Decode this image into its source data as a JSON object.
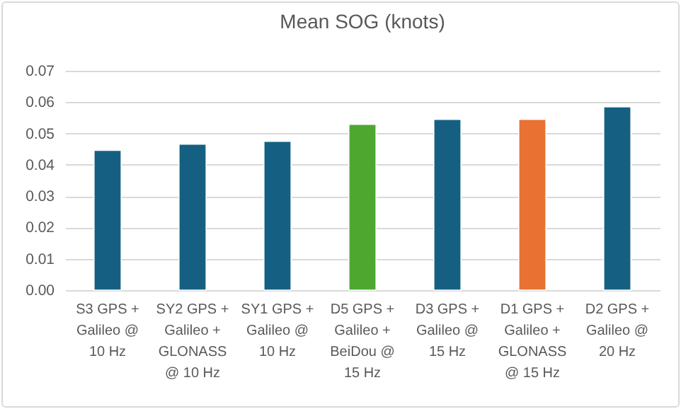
{
  "chart_data": {
    "type": "bar",
    "title": "Mean SOG (knots)",
    "categories": [
      "S3 GPS + Galileo @ 10 Hz",
      "SY2 GPS + Galileo + GLONASS @ 10 Hz",
      "SY1 GPS + Galileo @ 10 Hz",
      "D5 GPS + Galileo + BeiDou @ 15 Hz",
      "D3 GPS + Galileo @ 15 Hz",
      "D1 GPS + Galileo + GLONASS @ 15 Hz",
      "D2 GPS + Galileo @ 20 Hz"
    ],
    "values": [
      0.0446,
      0.0466,
      0.0475,
      0.0529,
      0.0545,
      0.0545,
      0.0585
    ],
    "colors": [
      "#156082",
      "#156082",
      "#156082",
      "#4ea72e",
      "#156082",
      "#e97132",
      "#156082"
    ],
    "ylim": [
      0,
      0.07
    ],
    "yticks": [
      {
        "value": 0,
        "label": "0.00"
      },
      {
        "value": 0.01,
        "label": "0.01"
      },
      {
        "value": 0.02,
        "label": "0.02"
      },
      {
        "value": 0.03,
        "label": "0.03"
      },
      {
        "value": 0.04,
        "label": "0.04"
      },
      {
        "value": 0.05,
        "label": "0.05"
      },
      {
        "value": 0.06,
        "label": "0.06"
      },
      {
        "value": 0.07,
        "label": "0.07"
      }
    ],
    "grid": true
  }
}
